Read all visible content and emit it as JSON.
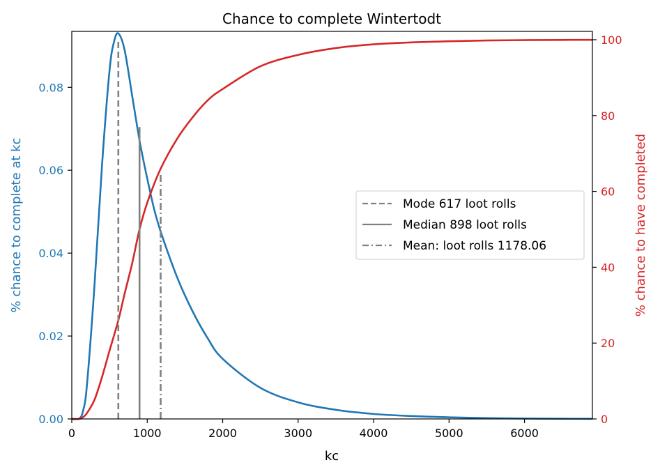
{
  "chart_data": {
    "type": "line",
    "title": "Chance to complete Wintertodt",
    "xlabel": "kc",
    "ylabel_left": "% chance to complete at kc",
    "ylabel_right": "% chance to have completed",
    "xlim": [
      0,
      6900
    ],
    "ylim_left": [
      0,
      0.0935
    ],
    "ylim_right": [
      0,
      100
    ],
    "x_ticks": [
      0,
      1000,
      2000,
      3000,
      4000,
      5000,
      6000
    ],
    "y_left_ticks": [
      0.0,
      0.02,
      0.04,
      0.06,
      0.08
    ],
    "y_left_tick_labels": [
      "0.00",
      "0.02",
      "0.04",
      "0.06",
      "0.08"
    ],
    "y_right_ticks": [
      0,
      20,
      40,
      60,
      80,
      100
    ],
    "grid": false,
    "legend_position": "center-right",
    "colors": {
      "pmf": "#1f77b4",
      "cdf": "#d62728",
      "markers": "#808080"
    },
    "series": [
      {
        "axis": "left",
        "x": [
          0,
          100,
          150,
          200,
          300,
          400,
          500,
          560,
          617,
          700,
          800,
          900,
          1000,
          1100,
          1200,
          1400,
          1600,
          1800,
          2000,
          2500,
          3000,
          3500,
          4000,
          4500,
          5000,
          5500,
          6000,
          6500,
          6900
        ],
        "y": [
          0,
          0.0001,
          0.002,
          0.008,
          0.032,
          0.061,
          0.084,
          0.091,
          0.093,
          0.089,
          0.078,
          0.067,
          0.058,
          0.05,
          0.044,
          0.034,
          0.026,
          0.0195,
          0.0145,
          0.0075,
          0.004,
          0.0022,
          0.0012,
          0.0007,
          0.0004,
          0.0002,
          0.0001,
          5e-05,
          3e-05
        ]
      },
      {
        "axis": "right",
        "x": [
          0,
          100,
          150,
          200,
          300,
          400,
          500,
          617,
          700,
          800,
          898,
          1000,
          1178,
          1400,
          1600,
          1800,
          2000,
          2500,
          3000,
          3500,
          4000,
          4500,
          5000,
          5500,
          6000,
          6500,
          6900
        ],
        "y": [
          0,
          0,
          0.5,
          1.5,
          5,
          11,
          18,
          26,
          33,
          41,
          50,
          57,
          66,
          74,
          79.5,
          84,
          87,
          93,
          96,
          97.8,
          98.8,
          99.3,
          99.6,
          99.8,
          99.9,
          99.95,
          99.97
        ]
      }
    ],
    "vlines": [
      {
        "label": "Mode 617 loot rolls",
        "x": 617,
        "y_top_pct": 100,
        "style": "dashed"
      },
      {
        "label": "Median 898 loot rolls",
        "x": 898,
        "y_top_pct": 77,
        "style": "solid"
      },
      {
        "label": "Mean: loot rolls 1178.06",
        "x": 1178,
        "y_top_pct": 65,
        "style": "dashdot"
      }
    ]
  }
}
